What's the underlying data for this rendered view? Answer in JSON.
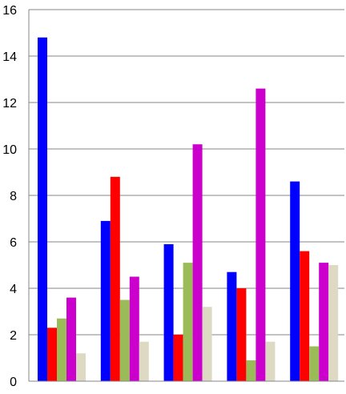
{
  "chart_data": {
    "type": "bar",
    "title": "",
    "xlabel": "",
    "ylabel": "",
    "ylim": [
      0,
      16
    ],
    "yticks": [
      0,
      2,
      4,
      6,
      8,
      10,
      12,
      14,
      16
    ],
    "grid": true,
    "legend": "none",
    "categories": [
      "",
      "",
      "",
      "",
      ""
    ],
    "series": [
      {
        "color": "#0000ff",
        "values": [
          14.8,
          6.9,
          5.9,
          4.7,
          8.6
        ]
      },
      {
        "color": "#ff0000",
        "values": [
          2.3,
          8.8,
          2.0,
          4.0,
          5.6
        ]
      },
      {
        "color": "#9bbb59",
        "values": [
          2.7,
          3.5,
          5.1,
          0.9,
          1.5
        ]
      },
      {
        "color": "#cc00cc",
        "values": [
          3.6,
          4.5,
          10.2,
          12.6,
          5.1
        ]
      },
      {
        "color": "#ddd9c3",
        "values": [
          1.2,
          1.7,
          3.2,
          1.7,
          5.0
        ]
      }
    ]
  }
}
